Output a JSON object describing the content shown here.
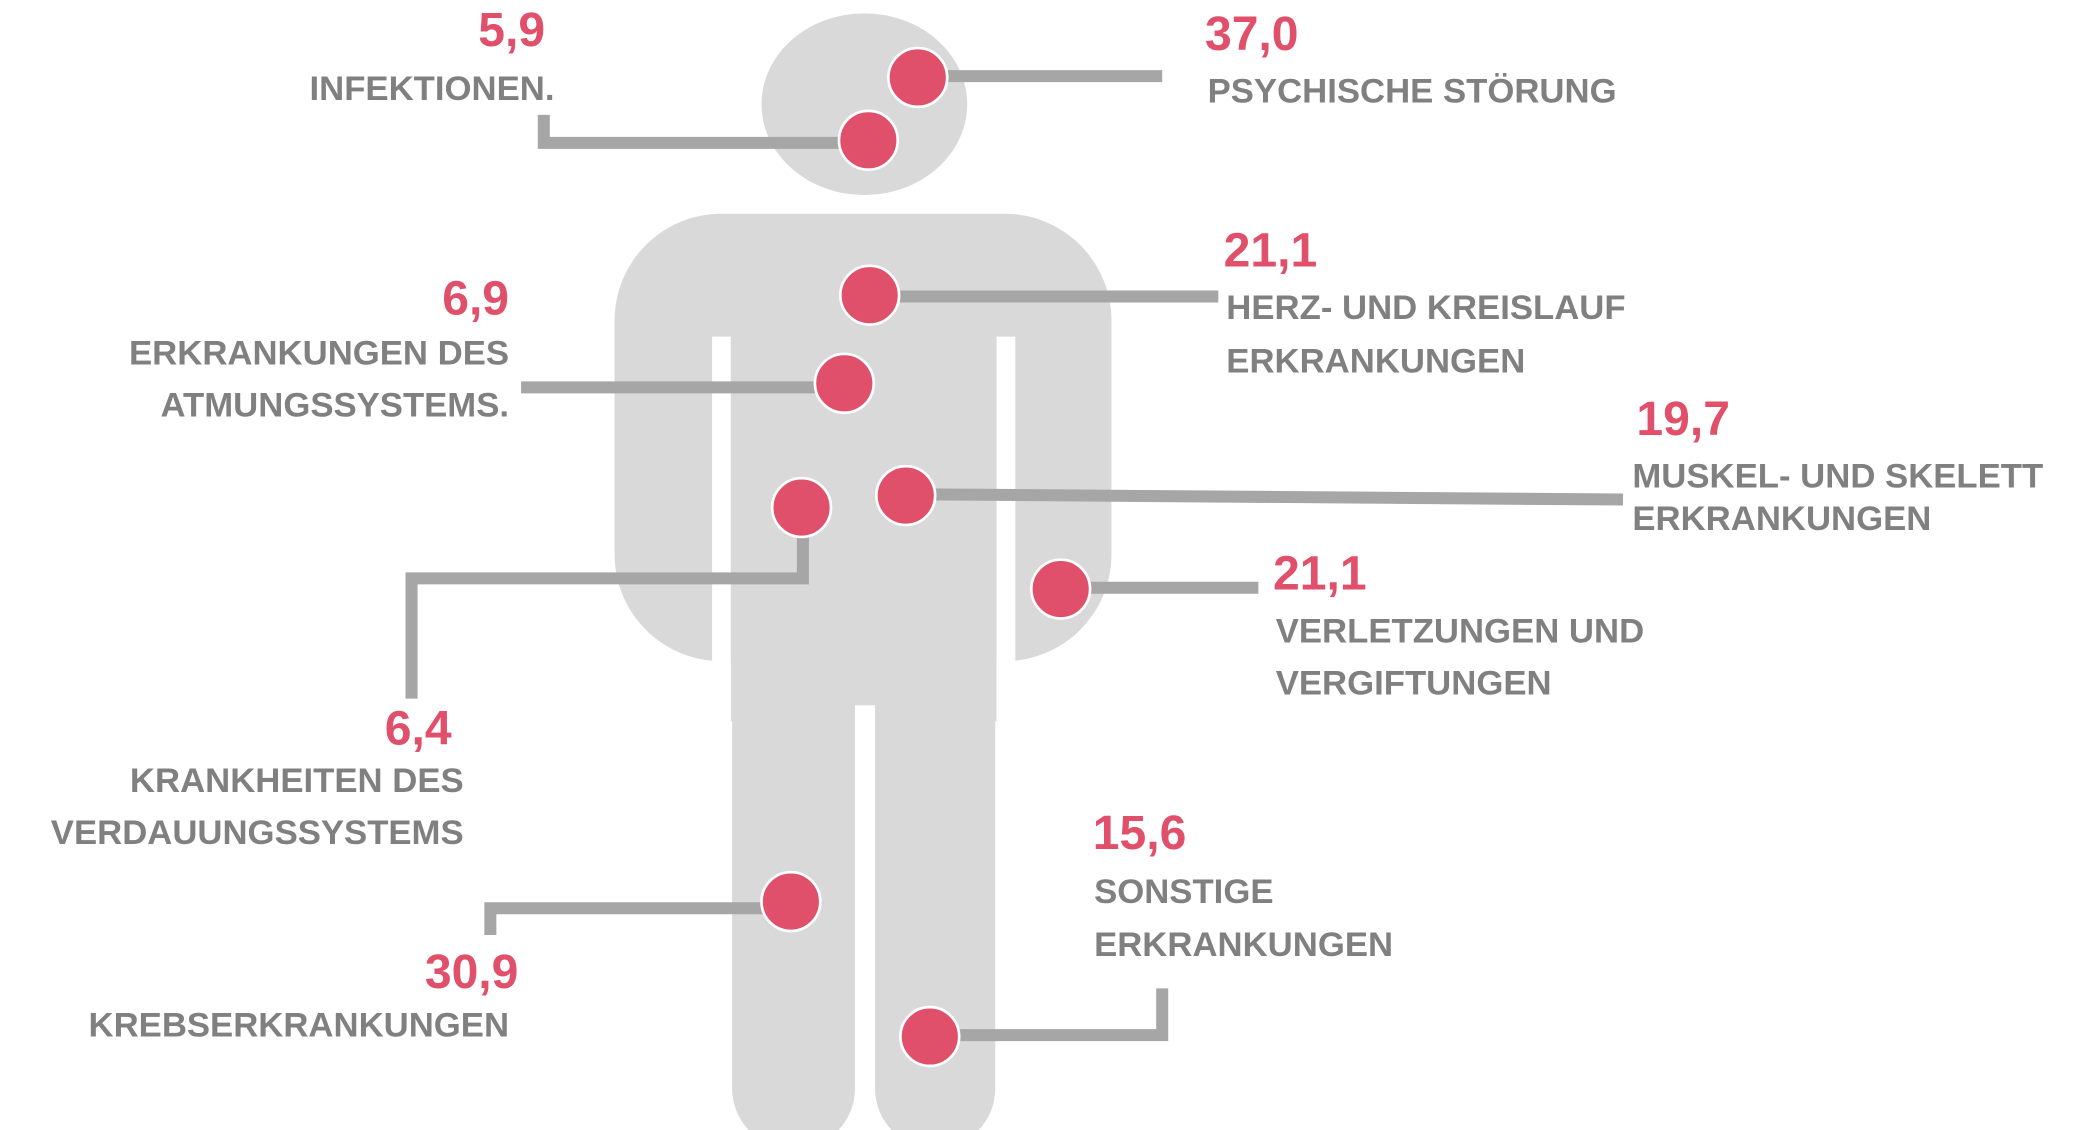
{
  "items": [
    {
      "value": "5,9",
      "label": [
        "INFEKTIONEN."
      ]
    },
    {
      "value": "37,0",
      "label": [
        "PSYCHISCHE STÖRUNG"
      ]
    },
    {
      "value": "21,1",
      "label": [
        "HERZ- UND KREISLAUF",
        "ERKRANKUNGEN"
      ]
    },
    {
      "value": "6,9",
      "label": [
        "ERKRANKUNGEN DES",
        "ATMUNGSSYSTEMS."
      ]
    },
    {
      "value": "19,7",
      "label": [
        "MUSKEL- UND SKELETT",
        "ERKRANKUNGEN"
      ]
    },
    {
      "value": "6,4",
      "label": [
        "KRANKHEITEN DES",
        "VERDAUUNGSSYSTEMS"
      ]
    },
    {
      "value": "21,1",
      "label": [
        "VERLETZUNGEN UND",
        "VERGIFTUNGEN"
      ]
    },
    {
      "value": "30,9",
      "label": [
        "KREBSERKRANKUNGEN"
      ]
    },
    {
      "value": "15,6",
      "label": [
        "SONSTIGE",
        "ERKRANKUNGEN"
      ]
    }
  ]
}
